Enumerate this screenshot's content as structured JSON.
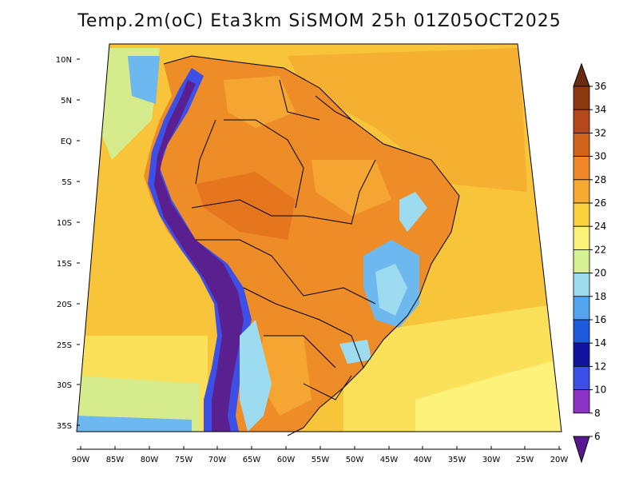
{
  "title": "Temp.2m(oC) Eta3km SiSMOM 25h 01Z05OCT2025",
  "lat_labels": [
    "10N",
    "5N",
    "EQ",
    "5S",
    "10S",
    "15S",
    "20S",
    "25S",
    "30S",
    "35S"
  ],
  "lon_labels": [
    "90W",
    "85W",
    "80W",
    "75W",
    "70W",
    "65W",
    "60W",
    "55W",
    "50W",
    "45W",
    "40W",
    "35W",
    "30W",
    "25W",
    "20W"
  ],
  "colorbar": {
    "unit": "oC",
    "levels": [
      "36",
      "34",
      "32",
      "30",
      "28",
      "26",
      "24",
      "22",
      "20",
      "18",
      "16",
      "14",
      "12",
      "10",
      "8",
      "6"
    ],
    "colors": [
      "#6a2c0e",
      "#8e3a10",
      "#b4481a",
      "#d2651c",
      "#f0882a",
      "#f7aa30",
      "#fbd23e",
      "#fdf27a",
      "#d4f291",
      "#9ddcf0",
      "#55a4f0",
      "#1e5adc",
      "#10149e",
      "#3c50e8",
      "#8c32c4",
      "#5a1890"
    ]
  },
  "field_colors": {
    "ocean_warm": "#f7c43a",
    "ocean_mild": "#fbe15a",
    "ocean_cool": "#d6ec8c",
    "land_hot": "#ee8c28",
    "land_warm": "#f5a632",
    "highland_cold": "#5a2090",
    "highland_cool": "#3c50e8",
    "plateau_cool": "#6eb8f0"
  }
}
